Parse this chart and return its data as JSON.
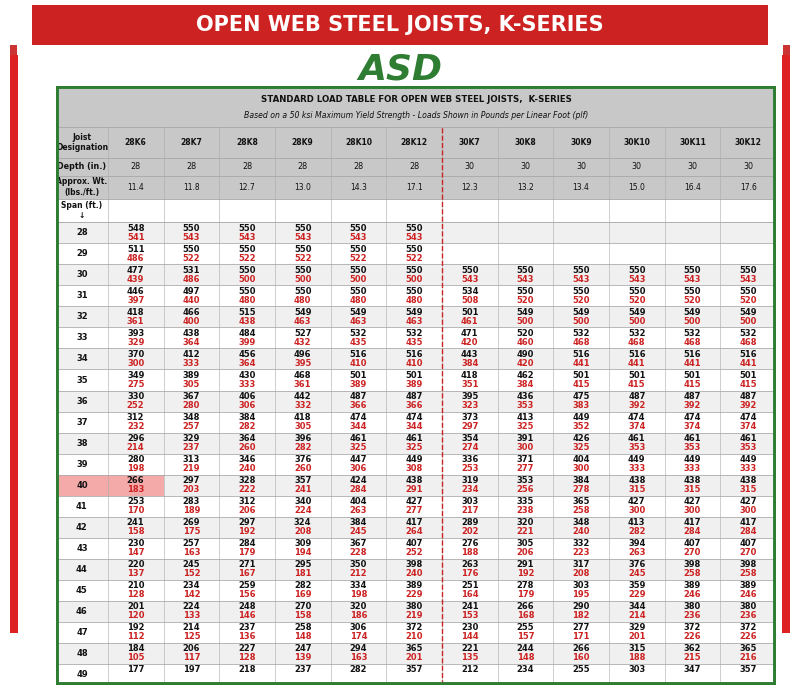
{
  "title": "OPEN WEB STEEL JOISTS, K-SERIES",
  "subtitle": "ASD",
  "table_title1": "STANDARD LOAD TABLE FOR OPEN WEB STEEL JOISTS,  K-SERIES",
  "table_title2": "Based on a 50 ksi Maximum Yield Strength - Loads Shown in Pounds per Linear Foot (plf)",
  "title_bg": "#cc2222",
  "title_color": "#ffffff",
  "subtitle_color": "#2e7d32",
  "border_color": "#2e7d32",
  "header_bg": "#c8c8c8",
  "col_headers": [
    "Joist\nDesignation",
    "28K6",
    "28K7",
    "28K8",
    "28K9",
    "28K10",
    "28K12",
    "30K7",
    "30K8",
    "30K9",
    "30K10",
    "30K11",
    "30K12"
  ],
  "depth_row": [
    "Depth (in.)",
    "28",
    "28",
    "28",
    "28",
    "28",
    "28",
    "30",
    "30",
    "30",
    "30",
    "30",
    "30"
  ],
  "weight_row": [
    "Approx. Wt.\n(lbs./ft.)",
    "11.4",
    "11.8",
    "12.7",
    "13.0",
    "14.3",
    "17.1",
    "12.3",
    "13.2",
    "13.4",
    "15.0",
    "16.4",
    "17.6"
  ],
  "span_label": "Span (ft.)\n↓",
  "data": [
    [
      28,
      [
        [
          "548",
          "541"
        ],
        [
          "550",
          "543"
        ],
        [
          "550",
          "543"
        ],
        [
          "550",
          "543"
        ],
        [
          "550",
          "543"
        ],
        [
          "550",
          "543"
        ],
        [
          "",
          ""
        ],
        [
          "",
          ""
        ],
        [
          "",
          ""
        ],
        [
          "",
          ""
        ],
        [
          "",
          ""
        ],
        [
          "",
          ""
        ]
      ]
    ],
    [
      29,
      [
        [
          "511",
          "486"
        ],
        [
          "550",
          "522"
        ],
        [
          "550",
          "522"
        ],
        [
          "550",
          "522"
        ],
        [
          "550",
          "522"
        ],
        [
          "550",
          "522"
        ],
        [
          "",
          ""
        ],
        [
          "",
          ""
        ],
        [
          "",
          ""
        ],
        [
          "",
          ""
        ],
        [
          "",
          ""
        ],
        [
          "",
          ""
        ]
      ]
    ],
    [
      30,
      [
        [
          "477",
          "439"
        ],
        [
          "531",
          "486"
        ],
        [
          "550",
          "500"
        ],
        [
          "550",
          "500"
        ],
        [
          "550",
          "500"
        ],
        [
          "550",
          "500"
        ],
        [
          "550",
          "543"
        ],
        [
          "550",
          "543"
        ],
        [
          "550",
          "543"
        ],
        [
          "550",
          "543"
        ],
        [
          "550",
          "543"
        ],
        [
          "550",
          "543"
        ]
      ]
    ],
    [
      31,
      [
        [
          "446",
          "397"
        ],
        [
          "497",
          "440"
        ],
        [
          "550",
          "480"
        ],
        [
          "550",
          "480"
        ],
        [
          "550",
          "480"
        ],
        [
          "550",
          "480"
        ],
        [
          "534",
          "508"
        ],
        [
          "550",
          "520"
        ],
        [
          "550",
          "520"
        ],
        [
          "550",
          "520"
        ],
        [
          "550",
          "520"
        ],
        [
          "550",
          "520"
        ]
      ]
    ],
    [
      32,
      [
        [
          "418",
          "361"
        ],
        [
          "466",
          "400"
        ],
        [
          "515",
          "438"
        ],
        [
          "549",
          "463"
        ],
        [
          "549",
          "463"
        ],
        [
          "549",
          "463"
        ],
        [
          "501",
          "461"
        ],
        [
          "549",
          "500"
        ],
        [
          "549",
          "500"
        ],
        [
          "549",
          "500"
        ],
        [
          "549",
          "500"
        ],
        [
          "549",
          "500"
        ]
      ]
    ],
    [
      33,
      [
        [
          "393",
          "329"
        ],
        [
          "438",
          "364"
        ],
        [
          "484",
          "399"
        ],
        [
          "527",
          "432"
        ],
        [
          "532",
          "435"
        ],
        [
          "532",
          "435"
        ],
        [
          "471",
          "420"
        ],
        [
          "520",
          "460"
        ],
        [
          "532",
          "468"
        ],
        [
          "532",
          "468"
        ],
        [
          "532",
          "468"
        ],
        [
          "532",
          "468"
        ]
      ]
    ],
    [
      34,
      [
        [
          "370",
          "300"
        ],
        [
          "412",
          "333"
        ],
        [
          "456",
          "364"
        ],
        [
          "496",
          "395"
        ],
        [
          "516",
          "410"
        ],
        [
          "516",
          "410"
        ],
        [
          "443",
          "384"
        ],
        [
          "490",
          "420"
        ],
        [
          "516",
          "441"
        ],
        [
          "516",
          "441"
        ],
        [
          "516",
          "441"
        ],
        [
          "516",
          "441"
        ]
      ]
    ],
    [
      35,
      [
        [
          "349",
          "275"
        ],
        [
          "389",
          "305"
        ],
        [
          "430",
          "333"
        ],
        [
          "468",
          "361"
        ],
        [
          "501",
          "389"
        ],
        [
          "501",
          "389"
        ],
        [
          "418",
          "351"
        ],
        [
          "462",
          "384"
        ],
        [
          "501",
          "415"
        ],
        [
          "501",
          "415"
        ],
        [
          "501",
          "415"
        ],
        [
          "501",
          "415"
        ]
      ]
    ],
    [
      36,
      [
        [
          "330",
          "252"
        ],
        [
          "367",
          "280"
        ],
        [
          "406",
          "306"
        ],
        [
          "442",
          "332"
        ],
        [
          "487",
          "366"
        ],
        [
          "487",
          "366"
        ],
        [
          "395",
          "323"
        ],
        [
          "436",
          "353"
        ],
        [
          "475",
          "383"
        ],
        [
          "487",
          "392"
        ],
        [
          "487",
          "392"
        ],
        [
          "487",
          "392"
        ]
      ]
    ],
    [
      37,
      [
        [
          "312",
          "232"
        ],
        [
          "348",
          "257"
        ],
        [
          "384",
          "282"
        ],
        [
          "418",
          "305"
        ],
        [
          "474",
          "344"
        ],
        [
          "474",
          "344"
        ],
        [
          "373",
          "297"
        ],
        [
          "413",
          "325"
        ],
        [
          "449",
          "352"
        ],
        [
          "474",
          "374"
        ],
        [
          "474",
          "374"
        ],
        [
          "474",
          "374"
        ]
      ]
    ],
    [
      38,
      [
        [
          "296",
          "214"
        ],
        [
          "329",
          "237"
        ],
        [
          "364",
          "260"
        ],
        [
          "396",
          "282"
        ],
        [
          "461",
          "325"
        ],
        [
          "461",
          "325"
        ],
        [
          "354",
          "274"
        ],
        [
          "391",
          "300"
        ],
        [
          "426",
          "325"
        ],
        [
          "461",
          "353"
        ],
        [
          "461",
          "353"
        ],
        [
          "461",
          "353"
        ]
      ]
    ],
    [
      39,
      [
        [
          "280",
          "198"
        ],
        [
          "313",
          "219"
        ],
        [
          "346",
          "240"
        ],
        [
          "376",
          "260"
        ],
        [
          "447",
          "306"
        ],
        [
          "449",
          "308"
        ],
        [
          "336",
          "253"
        ],
        [
          "371",
          "277"
        ],
        [
          "404",
          "300"
        ],
        [
          "449",
          "333"
        ],
        [
          "449",
          "333"
        ],
        [
          "449",
          "333"
        ]
      ]
    ],
    [
      40,
      [
        [
          "266",
          "183"
        ],
        [
          "297",
          "203"
        ],
        [
          "328",
          "222"
        ],
        [
          "357",
          "241"
        ],
        [
          "424",
          "284"
        ],
        [
          "438",
          "291"
        ],
        [
          "319",
          "234"
        ],
        [
          "353",
          "256"
        ],
        [
          "384",
          "278"
        ],
        [
          "438",
          "315"
        ],
        [
          "438",
          "315"
        ],
        [
          "438",
          "315"
        ]
      ]
    ],
    [
      41,
      [
        [
          "253",
          "170"
        ],
        [
          "283",
          "189"
        ],
        [
          "312",
          "206"
        ],
        [
          "340",
          "224"
        ],
        [
          "404",
          "263"
        ],
        [
          "427",
          "277"
        ],
        [
          "303",
          "217"
        ],
        [
          "335",
          "238"
        ],
        [
          "365",
          "258"
        ],
        [
          "427",
          "300"
        ],
        [
          "427",
          "300"
        ],
        [
          "427",
          "300"
        ]
      ]
    ],
    [
      42,
      [
        [
          "241",
          "158"
        ],
        [
          "269",
          "175"
        ],
        [
          "297",
          "192"
        ],
        [
          "324",
          "208"
        ],
        [
          "384",
          "245"
        ],
        [
          "417",
          "264"
        ],
        [
          "289",
          "202"
        ],
        [
          "320",
          "221"
        ],
        [
          "348",
          "240"
        ],
        [
          "413",
          "282"
        ],
        [
          "417",
          "284"
        ],
        [
          "417",
          "284"
        ]
      ]
    ],
    [
      43,
      [
        [
          "230",
          "147"
        ],
        [
          "257",
          "163"
        ],
        [
          "284",
          "179"
        ],
        [
          "309",
          "194"
        ],
        [
          "367",
          "228"
        ],
        [
          "407",
          "252"
        ],
        [
          "276",
          "188"
        ],
        [
          "305",
          "206"
        ],
        [
          "332",
          "223"
        ],
        [
          "394",
          "263"
        ],
        [
          "407",
          "270"
        ],
        [
          "407",
          "270"
        ]
      ]
    ],
    [
      44,
      [
        [
          "220",
          "137"
        ],
        [
          "245",
          "152"
        ],
        [
          "271",
          "167"
        ],
        [
          "295",
          "181"
        ],
        [
          "350",
          "212"
        ],
        [
          "398",
          "240"
        ],
        [
          "263",
          "176"
        ],
        [
          "291",
          "192"
        ],
        [
          "317",
          "208"
        ],
        [
          "376",
          "245"
        ],
        [
          "398",
          "258"
        ],
        [
          "398",
          "258"
        ]
      ]
    ],
    [
      45,
      [
        [
          "210",
          "128"
        ],
        [
          "234",
          "142"
        ],
        [
          "259",
          "156"
        ],
        [
          "282",
          "169"
        ],
        [
          "334",
          "198"
        ],
        [
          "389",
          "229"
        ],
        [
          "251",
          "164"
        ],
        [
          "278",
          "179"
        ],
        [
          "303",
          "195"
        ],
        [
          "359",
          "229"
        ],
        [
          "389",
          "246"
        ],
        [
          "389",
          "246"
        ]
      ]
    ],
    [
      46,
      [
        [
          "201",
          "120"
        ],
        [
          "224",
          "133"
        ],
        [
          "248",
          "146"
        ],
        [
          "270",
          "158"
        ],
        [
          "320",
          "186"
        ],
        [
          "380",
          "219"
        ],
        [
          "241",
          "153"
        ],
        [
          "266",
          "168"
        ],
        [
          "290",
          "182"
        ],
        [
          "344",
          "214"
        ],
        [
          "380",
          "236"
        ],
        [
          "380",
          "236"
        ]
      ]
    ],
    [
      47,
      [
        [
          "192",
          "112"
        ],
        [
          "214",
          "125"
        ],
        [
          "237",
          "136"
        ],
        [
          "258",
          "148"
        ],
        [
          "306",
          "174"
        ],
        [
          "372",
          "210"
        ],
        [
          "230",
          "144"
        ],
        [
          "255",
          "157"
        ],
        [
          "277",
          "171"
        ],
        [
          "329",
          "201"
        ],
        [
          "372",
          "226"
        ],
        [
          "372",
          "226"
        ]
      ]
    ],
    [
      48,
      [
        [
          "184",
          "105"
        ],
        [
          "206",
          "117"
        ],
        [
          "227",
          "128"
        ],
        [
          "247",
          "139"
        ],
        [
          "294",
          "163"
        ],
        [
          "365",
          "201"
        ],
        [
          "221",
          "135"
        ],
        [
          "244",
          "148"
        ],
        [
          "266",
          "160"
        ],
        [
          "315",
          "188"
        ],
        [
          "362",
          "215"
        ],
        [
          "365",
          "216"
        ]
      ]
    ],
    [
      49,
      [
        [
          "177",
          ""
        ],
        [
          "197",
          ""
        ],
        [
          "218",
          ""
        ],
        [
          "237",
          ""
        ],
        [
          "282",
          ""
        ],
        [
          "357",
          ""
        ],
        [
          "212",
          ""
        ],
        [
          "234",
          ""
        ],
        [
          "255",
          ""
        ],
        [
          "303",
          ""
        ],
        [
          "347",
          ""
        ],
        [
          "357",
          ""
        ]
      ]
    ]
  ],
  "red_dashed_col": 7,
  "highlight_span": 40,
  "highlight_col": 0
}
